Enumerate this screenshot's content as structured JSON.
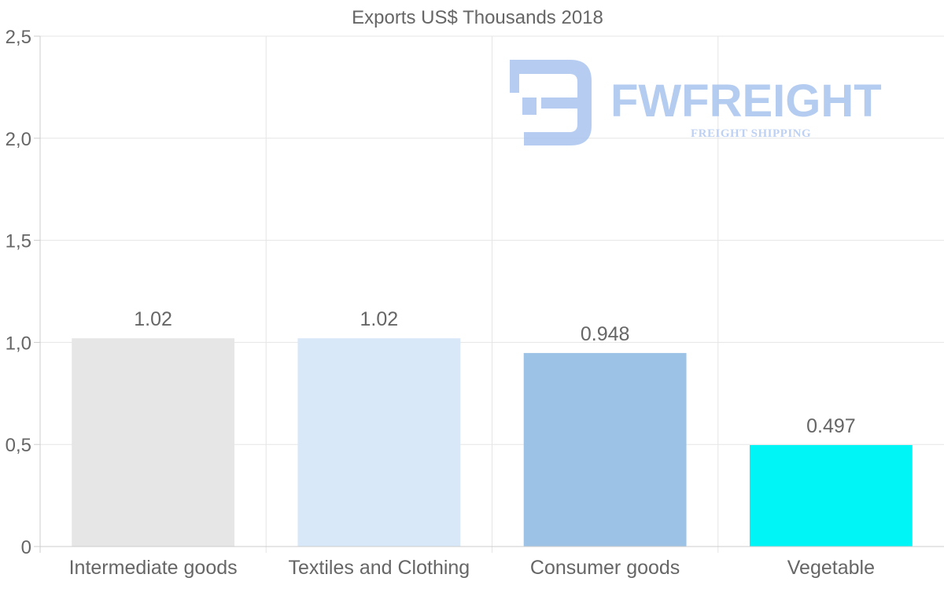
{
  "chart_data": {
    "type": "bar",
    "title": "Exports US$ Thousands 2018",
    "categories": [
      "Intermediate goods",
      "Textiles and Clothing",
      "Consumer goods",
      "Vegetable"
    ],
    "values": [
      1.02,
      1.02,
      0.948,
      0.497
    ],
    "data_labels": [
      "1.02",
      "1.02",
      "0.948",
      "0.497"
    ],
    "colors": [
      "#e6e6e6",
      "#d8e8f8",
      "#9cc3e6",
      "#00f6f6"
    ],
    "ylim": [
      0,
      2.5
    ],
    "yticks": [
      0,
      0.5,
      1.0,
      1.5,
      2.0,
      2.5
    ],
    "ytick_labels": [
      "0",
      "0,5",
      "1,0",
      "1,5",
      "2,0",
      "2,5"
    ],
    "xlabel": "",
    "ylabel": "",
    "grid": true
  },
  "watermark": {
    "brand": "FWFREIGHT",
    "tagline": "FREIGHT SHIPPING",
    "color": "#a9c4ef"
  }
}
